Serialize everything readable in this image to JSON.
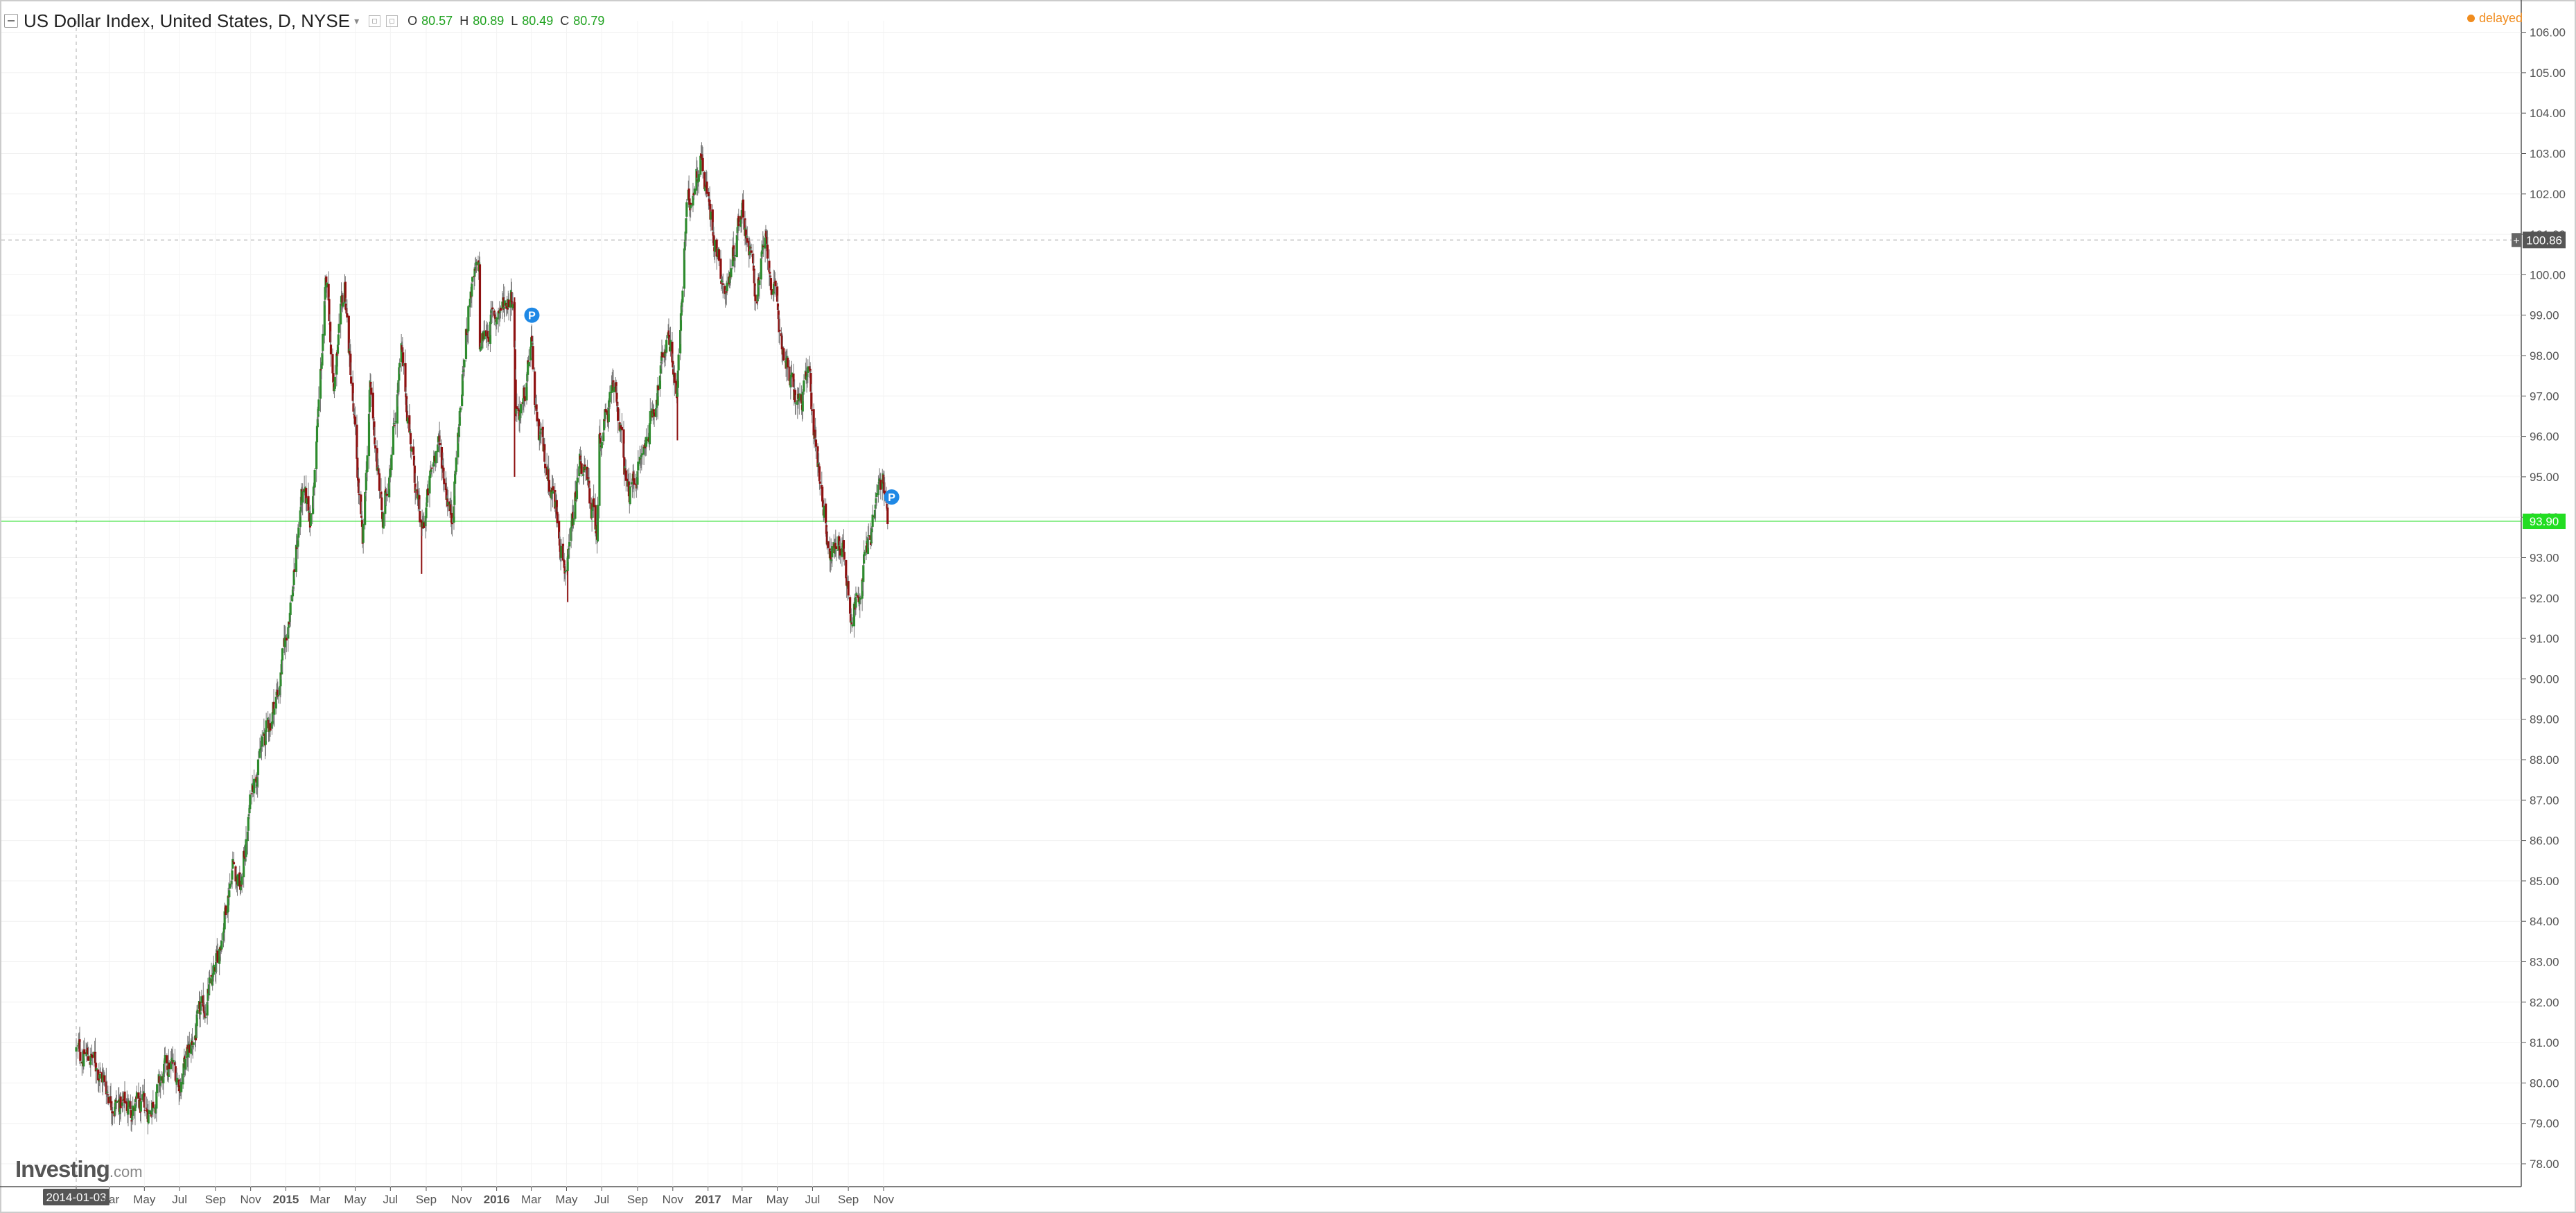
{
  "header": {
    "title": "US Dollar Index, United States, D, NYSE",
    "ohlc": [
      {
        "label": "O",
        "value": "80.57"
      },
      {
        "label": "H",
        "value": "80.89"
      },
      {
        "label": "L",
        "value": "80.49"
      },
      {
        "label": "C",
        "value": "80.79"
      }
    ]
  },
  "status": {
    "delayed_label": "delayed"
  },
  "logo": {
    "brand": "Investing",
    "suffix": ".com"
  },
  "colors": {
    "up": "#2e8b2e",
    "down": "#8e1111",
    "wick": "#777777",
    "accent_green": "#22dd22",
    "marker": "#1e88e5",
    "delayed": "#f08c1e"
  },
  "chart_data": {
    "type": "candlestick",
    "title": "US Dollar Index, United States, D, NYSE",
    "ylim": [
      77.5,
      106.5
    ],
    "y_ticks": [
      "78.00",
      "79.00",
      "80.00",
      "81.00",
      "82.00",
      "83.00",
      "84.00",
      "85.00",
      "86.00",
      "87.00",
      "88.00",
      "89.00",
      "90.00",
      "91.00",
      "92.00",
      "93.00",
      "94.00",
      "95.00",
      "96.00",
      "97.00",
      "98.00",
      "99.00",
      "100.00",
      "101.00",
      "102.00",
      "103.00",
      "104.00",
      "105.00",
      "106.00"
    ],
    "x_ticks": [
      {
        "label": "2014-01-03",
        "date": "2014-01-03",
        "highlight": true
      },
      {
        "label": "Mar",
        "date": "2014-03-01"
      },
      {
        "label": "May",
        "date": "2014-05-01"
      },
      {
        "label": "Jul",
        "date": "2014-07-01"
      },
      {
        "label": "Sep",
        "date": "2014-09-01"
      },
      {
        "label": "Nov",
        "date": "2014-11-01"
      },
      {
        "label": "2015",
        "date": "2015-01-01",
        "bold": true
      },
      {
        "label": "Mar",
        "date": "2015-03-01"
      },
      {
        "label": "May",
        "date": "2015-05-01"
      },
      {
        "label": "Jul",
        "date": "2015-07-01"
      },
      {
        "label": "Sep",
        "date": "2015-09-01"
      },
      {
        "label": "Nov",
        "date": "2015-11-01"
      },
      {
        "label": "2016",
        "date": "2016-01-01",
        "bold": true
      },
      {
        "label": "Mar",
        "date": "2016-03-01"
      },
      {
        "label": "May",
        "date": "2016-05-01"
      },
      {
        "label": "Jul",
        "date": "2016-07-01"
      },
      {
        "label": "Sep",
        "date": "2016-09-01"
      },
      {
        "label": "Nov",
        "date": "2016-11-01"
      },
      {
        "label": "2017",
        "date": "2017-01-01",
        "bold": true
      },
      {
        "label": "Mar",
        "date": "2017-03-01"
      },
      {
        "label": "May",
        "date": "2017-05-01"
      },
      {
        "label": "Jul",
        "date": "2017-07-01"
      },
      {
        "label": "Sep",
        "date": "2017-09-01"
      },
      {
        "label": "Nov",
        "date": "2017-11-01"
      }
    ],
    "price_anchors": [
      {
        "date": "2014-01-03",
        "value": 80.8
      },
      {
        "date": "2014-02-01",
        "value": 80.6
      },
      {
        "date": "2014-03-10",
        "value": 79.5
      },
      {
        "date": "2014-05-08",
        "value": 79.3
      },
      {
        "date": "2014-06-15",
        "value": 80.5
      },
      {
        "date": "2014-07-01",
        "value": 80.0
      },
      {
        "date": "2014-08-01",
        "value": 81.4
      },
      {
        "date": "2014-09-01",
        "value": 82.7
      },
      {
        "date": "2014-10-01",
        "value": 85.5
      },
      {
        "date": "2014-10-15",
        "value": 84.8
      },
      {
        "date": "2014-11-05",
        "value": 87.5
      },
      {
        "date": "2014-12-05",
        "value": 89.0
      },
      {
        "date": "2014-12-20",
        "value": 89.8
      },
      {
        "date": "2015-01-15",
        "value": 92.5
      },
      {
        "date": "2015-01-28",
        "value": 94.5
      },
      {
        "date": "2015-02-15",
        "value": 94.0
      },
      {
        "date": "2015-03-13",
        "value": 100.0
      },
      {
        "date": "2015-03-25",
        "value": 97.2
      },
      {
        "date": "2015-04-13",
        "value": 99.7
      },
      {
        "date": "2015-05-14",
        "value": 93.2
      },
      {
        "date": "2015-05-27",
        "value": 97.2
      },
      {
        "date": "2015-06-18",
        "value": 93.8
      },
      {
        "date": "2015-07-20",
        "value": 98.0
      },
      {
        "date": "2015-08-24",
        "value": 93.5
      },
      {
        "date": "2015-09-20",
        "value": 96.0
      },
      {
        "date": "2015-10-15",
        "value": 94.0
      },
      {
        "date": "2015-11-15",
        "value": 99.5
      },
      {
        "date": "2015-12-02",
        "value": 100.2
      },
      {
        "date": "2015-12-03",
        "value": 98.2
      },
      {
        "date": "2015-12-20",
        "value": 98.8
      },
      {
        "date": "2016-01-30",
        "value": 99.6
      },
      {
        "date": "2016-02-03",
        "value": 96.8
      },
      {
        "date": "2016-02-15",
        "value": 96.5
      },
      {
        "date": "2016-03-01",
        "value": 98.4
      },
      {
        "date": "2016-03-10",
        "value": 96.2
      },
      {
        "date": "2016-04-10",
        "value": 94.5
      },
      {
        "date": "2016-05-02",
        "value": 92.5
      },
      {
        "date": "2016-05-25",
        "value": 95.5
      },
      {
        "date": "2016-06-23",
        "value": 93.6
      },
      {
        "date": "2016-06-27",
        "value": 96.0
      },
      {
        "date": "2016-07-25",
        "value": 97.2
      },
      {
        "date": "2016-08-15",
        "value": 94.5
      },
      {
        "date": "2016-09-10",
        "value": 95.5
      },
      {
        "date": "2016-10-10",
        "value": 97.5
      },
      {
        "date": "2016-10-25",
        "value": 98.7
      },
      {
        "date": "2016-11-08",
        "value": 97.0
      },
      {
        "date": "2016-11-25",
        "value": 101.5
      },
      {
        "date": "2016-12-20",
        "value": 103.0
      },
      {
        "date": "2017-01-05",
        "value": 101.5
      },
      {
        "date": "2017-02-01",
        "value": 99.5
      },
      {
        "date": "2017-03-01",
        "value": 101.8
      },
      {
        "date": "2017-03-25",
        "value": 99.5
      },
      {
        "date": "2017-04-10",
        "value": 100.8
      },
      {
        "date": "2017-05-01",
        "value": 99.0
      },
      {
        "date": "2017-05-25",
        "value": 97.2
      },
      {
        "date": "2017-06-10",
        "value": 96.8
      },
      {
        "date": "2017-06-25",
        "value": 97.5
      },
      {
        "date": "2017-07-05",
        "value": 96.0
      },
      {
        "date": "2017-08-01",
        "value": 93.0
      },
      {
        "date": "2017-08-20",
        "value": 93.5
      },
      {
        "date": "2017-09-08",
        "value": 91.5
      },
      {
        "date": "2017-10-01",
        "value": 93.0
      },
      {
        "date": "2017-10-25",
        "value": 94.8
      },
      {
        "date": "2017-11-01",
        "value": 94.8
      },
      {
        "date": "2017-11-08",
        "value": 93.9
      }
    ],
    "spikes": [
      {
        "date": "2016-02-01",
        "low": 95.0
      },
      {
        "date": "2015-08-24",
        "low": 92.6
      },
      {
        "date": "2016-11-09",
        "low": 95.9
      },
      {
        "date": "2016-05-03",
        "low": 91.9
      }
    ],
    "marker_label": "P",
    "markers": [
      {
        "date": "2016-03-02",
        "value": 99.0
      },
      {
        "date": "2017-11-15",
        "value": 94.5
      }
    ],
    "crosshair": {
      "date": "2014-01-03",
      "price_label": "100.86",
      "price": 100.86
    },
    "current_price": {
      "label": "93.90",
      "value": 93.9
    }
  }
}
